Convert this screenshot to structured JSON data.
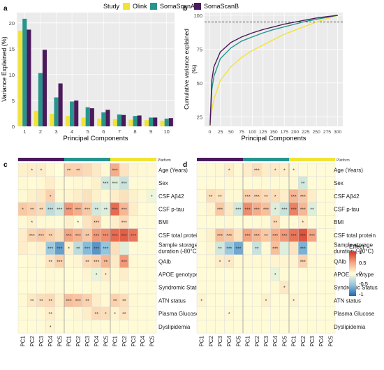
{
  "legend": {
    "title": "Study",
    "items": [
      {
        "name": "Olink",
        "color": "#F2E335"
      },
      {
        "name": "SomaScanA",
        "color": "#27958C"
      },
      {
        "name": "SomaScanB",
        "color": "#4A1A5C"
      }
    ]
  },
  "heatmap_legend": {
    "title": "Effect",
    "ticks": [
      "1",
      "0.5",
      "0",
      "-0.5",
      "-1"
    ]
  },
  "platform_label": "Platform",
  "chart_data": [
    {
      "panel": "a",
      "type": "bar",
      "xlabel": "Principal Components",
      "ylabel": "Variance Explained (%)",
      "ylim": [
        0,
        22
      ],
      "yticks": [
        0,
        5,
        10,
        15,
        20
      ],
      "categories": [
        "1",
        "2",
        "3",
        "4",
        "5",
        "6",
        "7",
        "8",
        "9",
        "10"
      ],
      "series": [
        {
          "name": "Olink",
          "values": [
            18.5,
            3.0,
            2.4,
            2.0,
            1.7,
            1.5,
            1.4,
            1.3,
            1.2,
            1.1
          ]
        },
        {
          "name": "SomaScanA",
          "values": [
            20.8,
            10.3,
            5.6,
            4.8,
            3.7,
            2.7,
            2.3,
            2.0,
            1.7,
            1.5
          ]
        },
        {
          "name": "SomaScanB",
          "values": [
            18.7,
            14.8,
            8.3,
            5.0,
            3.5,
            3.2,
            2.2,
            2.1,
            1.7,
            1.6
          ]
        }
      ],
      "grid": true
    },
    {
      "panel": "b",
      "type": "line",
      "xlabel": "Principal Components",
      "ylabel": "Cumulative variance explained (%)",
      "xlim": [
        0,
        300
      ],
      "ylim": [
        18,
        102
      ],
      "xticks": [
        0,
        25,
        50,
        75,
        100,
        125,
        150,
        175,
        200,
        225,
        250,
        275,
        300
      ],
      "yticks": [
        25,
        50,
        75,
        100
      ],
      "reference_line_y": 95,
      "x": [
        1,
        5,
        10,
        25,
        50,
        75,
        100,
        125,
        150,
        175,
        200,
        225,
        250,
        275,
        300
      ],
      "series": [
        {
          "name": "Olink",
          "values": [
            18.5,
            30,
            38,
            52,
            62,
            69,
            74,
            78,
            82,
            86,
            89,
            92,
            95,
            97.5,
            100
          ]
        },
        {
          "name": "SomaScanA",
          "values": [
            20.8,
            45,
            55,
            68,
            76,
            81,
            84,
            87,
            89.5,
            91.5,
            93.5,
            95.5,
            97,
            98.5,
            100
          ]
        },
        {
          "name": "SomaScanB",
          "values": [
            18.7,
            52,
            62,
            73,
            80,
            84,
            87,
            89.5,
            91.5,
            93.5,
            95,
            96.5,
            98,
            99,
            100
          ]
        }
      ],
      "grid": true
    },
    {
      "panel": "c",
      "type": "heatmap",
      "groups": [
        "SomaScanB",
        "SomaScanA",
        "Olink"
      ],
      "columns": [
        "PC1",
        "PC2",
        "PC3",
        "PC4",
        "PC5",
        "PC1",
        "PC2",
        "PC3",
        "PC4",
        "PC5",
        "PC1",
        "PC2",
        "PC3",
        "PC4",
        "PC5"
      ],
      "rows": [
        "Age (Years)",
        "Sex",
        "CSF Aβ42",
        "CSF p-tau",
        "BMI",
        "CSF total protein",
        "Sample storage duration (-80°C)",
        "QAlb",
        "APOE genotype",
        "Syndromic Status",
        "ATN status",
        "Plasma Glucose",
        "Dyslipidemia"
      ],
      "values": [
        [
          0.08,
          0.1,
          0.1,
          0.04,
          0,
          0.25,
          0.25,
          0.2,
          0.12,
          0.04,
          0.45,
          0.15,
          0.05,
          0.04,
          0.04
        ],
        [
          0.04,
          0.02,
          0.04,
          0.1,
          0.03,
          0.02,
          0.04,
          0.04,
          0.08,
          -0.2,
          -0.15,
          -0.25,
          0.03,
          0.02,
          0.02
        ],
        [
          0.04,
          0.08,
          0.12,
          0.25,
          0.04,
          0.06,
          0.1,
          0.16,
          0.08,
          0.04,
          0.1,
          0.16,
          0.08,
          0.04,
          -0.08
        ],
        [
          0.3,
          0.25,
          0.2,
          -0.3,
          -0.2,
          0.55,
          0.45,
          0.3,
          -0.2,
          -0.15,
          0.75,
          0.4,
          0.1,
          0.02,
          0.02
        ],
        [
          0.04,
          0.08,
          0.04,
          0.04,
          0.02,
          0.08,
          0.03,
          0.15,
          0.25,
          0.04,
          0.1,
          0.2,
          0.04,
          0.02,
          0.02
        ],
        [
          0.1,
          0.25,
          0.3,
          0.25,
          0.18,
          0.5,
          0.42,
          0.3,
          0.55,
          0.6,
          0.75,
          0.8,
          0.7,
          0.03,
          0.02
        ],
        [
          0.1,
          0.05,
          0.08,
          -0.45,
          -0.7,
          0.08,
          -0.3,
          -0.55,
          -0.75,
          -0.5,
          0.18,
          -0.15,
          0.03,
          0.02,
          0.02
        ],
        [
          0.02,
          0.04,
          0.04,
          0.15,
          0.25,
          0.04,
          0.06,
          0.2,
          0.25,
          0.4,
          0.12,
          0.55,
          0.04,
          0.02,
          0.02
        ],
        [
          0.02,
          0.02,
          0.02,
          0.04,
          0.03,
          0.02,
          0.02,
          0.06,
          -0.1,
          0.1,
          0.04,
          0.1,
          0.02,
          0.02,
          0.02
        ],
        [
          0.02,
          0.02,
          0.02,
          0.04,
          0.03,
          0.02,
          0.02,
          0.03,
          0.04,
          0.04,
          0.04,
          0.04,
          0.02,
          0.02,
          0.02
        ],
        [
          0.04,
          0.12,
          0.18,
          0.2,
          0.08,
          0.35,
          0.32,
          0.25,
          0.1,
          0.04,
          0.25,
          0.18,
          0.04,
          0.02,
          0.02
        ],
        [
          0.03,
          0.03,
          0.04,
          0.1,
          0.04,
          0.03,
          0.05,
          0.1,
          0.2,
          0.18,
          0.06,
          0.15,
          0.03,
          0.02,
          0.02
        ],
        [
          0.02,
          0.02,
          0.03,
          0.06,
          0.02,
          0.02,
          0.03,
          0.03,
          0.03,
          0.02,
          0.02,
          0.02,
          0.02,
          0.02,
          0.02
        ]
      ],
      "stars": [
        [
          "",
          "*",
          "*",
          "",
          "",
          "**",
          "**",
          "",
          "",
          "",
          "***",
          "",
          "",
          "",
          ""
        ],
        [
          "",
          "",
          "",
          "",
          "",
          "",
          "",
          "",
          "",
          "***",
          "***",
          "***",
          "",
          "",
          ""
        ],
        [
          "",
          "",
          "",
          "*",
          "",
          "",
          "",
          "",
          "",
          "",
          "",
          "",
          "",
          "",
          "*"
        ],
        [
          "*",
          "**",
          "**",
          "***",
          "***",
          "***",
          "***",
          "***",
          "**",
          "**",
          "***",
          "***",
          "",
          "",
          ""
        ],
        [
          "",
          "*",
          "",
          "",
          "",
          "",
          "*",
          "",
          "***",
          "",
          "",
          "***",
          "",
          "",
          ""
        ],
        [
          "",
          "***",
          "***",
          "**",
          "",
          "***",
          "***",
          "**",
          "***",
          "***",
          "***",
          "***",
          "***",
          "",
          ""
        ],
        [
          "",
          "",
          "",
          "***",
          "***",
          "*",
          "**",
          "***",
          "***",
          "***",
          "",
          "",
          "",
          "",
          ""
        ],
        [
          "",
          "",
          "",
          "**",
          "***",
          "",
          "",
          "**",
          "***",
          "**",
          "",
          "***",
          "",
          "",
          ""
        ],
        [
          "",
          "",
          "",
          "",
          "",
          "",
          "",
          "",
          "*",
          "*",
          "",
          "",
          "",
          "",
          ""
        ],
        [
          "",
          "",
          "",
          "",
          "",
          "",
          "",
          "",
          "",
          "",
          "",
          "",
          "",
          "",
          ""
        ],
        [
          "",
          "**",
          "**",
          "**",
          "",
          "***",
          "***",
          "**",
          "",
          "",
          "**",
          "**",
          "",
          "",
          ""
        ],
        [
          "",
          "",
          "",
          "**",
          "",
          "",
          "",
          "",
          "**",
          "*",
          "*",
          "**",
          "",
          "",
          ""
        ],
        [
          "",
          "",
          "",
          "*",
          "",
          "",
          "",
          "",
          "",
          "",
          "",
          "",
          "",
          "",
          ""
        ]
      ]
    },
    {
      "panel": "d",
      "type": "heatmap",
      "groups": [
        "SomaScanB",
        "SomaScanA",
        "Olink"
      ],
      "columns": [
        "PC1",
        "PC2",
        "PC3",
        "PC4",
        "PC5",
        "PC1",
        "PC2",
        "PC3",
        "PC4",
        "PC5",
        "PC1",
        "PC2",
        "PC3",
        "PC4",
        "PC5"
      ],
      "rows": [
        "Age (Years)",
        "Sex",
        "CSF Aβ42",
        "CSF p-tau",
        "BMI",
        "CSF total protein",
        "Sample storage duration (-80°C)",
        "QAlb",
        "APOE genotype",
        "Syndromic Status",
        "ATN status",
        "Plasma Glucose",
        "Dyslipidemia"
      ],
      "values": [
        [
          0.03,
          0.03,
          0.04,
          0.1,
          0.04,
          0.1,
          0.18,
          0.1,
          0.12,
          0.1,
          0.04,
          0.03,
          0.02,
          0.02,
          0.02
        ],
        [
          0.02,
          0.02,
          0.02,
          0.03,
          0.02,
          0.02,
          0.03,
          0.03,
          0.03,
          0.03,
          0.04,
          -0.2,
          0.02,
          0.02,
          0.02
        ],
        [
          0.03,
          0.18,
          0.15,
          0.04,
          0.04,
          0.25,
          0.25,
          0.2,
          0.18,
          0.1,
          0.4,
          0.3,
          0.1,
          0.02,
          0.02
        ],
        [
          0.03,
          0.06,
          0.3,
          0.12,
          -0.2,
          0.6,
          0.45,
          0.35,
          -0.15,
          -0.25,
          0.65,
          0.4,
          -0.15,
          0.02,
          0.02
        ],
        [
          0.02,
          0.02,
          0.03,
          0.04,
          0.02,
          0.03,
          0.03,
          0.04,
          0.2,
          0.04,
          0.03,
          0.1,
          0.02,
          0.02,
          0.02
        ],
        [
          0.04,
          0.08,
          0.35,
          0.3,
          0.15,
          0.5,
          0.4,
          0.3,
          0.45,
          0.55,
          0.7,
          0.85,
          0.5,
          0.02,
          0.02
        ],
        [
          0.02,
          0.05,
          -0.2,
          -0.45,
          -0.65,
          0.04,
          -0.25,
          0.04,
          0.35,
          -0.15,
          0.15,
          -0.6,
          0.04,
          0.02,
          0.02
        ],
        [
          0.02,
          0.04,
          0.1,
          0.12,
          0.04,
          0.04,
          0.04,
          0.04,
          0.06,
          0.06,
          0.06,
          0.25,
          0.04,
          0.02,
          0.02
        ],
        [
          0.02,
          0.02,
          0.02,
          0.02,
          0.02,
          0.02,
          0.02,
          0.02,
          -0.1,
          0.03,
          0.02,
          0.02,
          0.02,
          0.02,
          0.02
        ],
        [
          0.02,
          0.02,
          0.02,
          0.02,
          0.02,
          0.02,
          0.02,
          0.02,
          0.04,
          0.12,
          0.02,
          0.02,
          0.02,
          0.02,
          0.02
        ],
        [
          0.06,
          0.02,
          0.02,
          0.02,
          0.02,
          0.02,
          0.03,
          0.08,
          0.02,
          0.02,
          0.06,
          0.02,
          0.02,
          0.02,
          0.02
        ],
        [
          0.02,
          0.02,
          0.02,
          0.04,
          0.02,
          0.02,
          0.02,
          0.02,
          0.02,
          0.02,
          0.02,
          0.02,
          0.02,
          0.02,
          0.02
        ],
        [
          0.02,
          0.02,
          0.02,
          0.02,
          0.02,
          0.02,
          0.02,
          0.02,
          0.02,
          0.02,
          0.02,
          0.02,
          0.02,
          0.02,
          0.02
        ]
      ],
      "stars": [
        [
          "",
          "",
          "",
          "*",
          "",
          "",
          "***",
          "",
          "*",
          "*",
          "*",
          "",
          "",
          "",
          ""
        ],
        [
          "",
          "",
          "",
          "",
          "",
          "",
          "",
          "",
          "",
          "",
          "",
          "**",
          "",
          "",
          ""
        ],
        [
          "",
          "**",
          "**",
          "",
          "",
          "***",
          "***",
          "**",
          "*",
          "",
          "***",
          "***",
          "",
          "",
          ""
        ],
        [
          "",
          "",
          "***",
          "",
          "***",
          "***",
          "***",
          "***",
          "*",
          "***",
          "***",
          "***",
          "**",
          "",
          ""
        ],
        [
          "",
          "",
          "",
          "",
          "",
          "",
          "",
          "",
          "**",
          "",
          "",
          "*",
          "",
          "",
          ""
        ],
        [
          "",
          "",
          "***",
          "***",
          "",
          "***",
          "***",
          "**",
          "***",
          "***",
          "***",
          "***",
          "***",
          "",
          ""
        ],
        [
          "",
          "",
          "**",
          "***",
          "***",
          "",
          "**",
          "",
          "***",
          "",
          "",
          "***",
          "",
          "",
          ""
        ],
        [
          "",
          "",
          "*",
          "*",
          "",
          "",
          "",
          "",
          "",
          "",
          "",
          "***",
          "",
          "",
          ""
        ],
        [
          "",
          "",
          "",
          "",
          "",
          "",
          "",
          "",
          "*",
          "",
          "",
          "",
          "",
          "",
          ""
        ],
        [
          "",
          "",
          "",
          "",
          "",
          "",
          "",
          "",
          "",
          "*",
          "",
          "",
          "",
          "",
          ""
        ],
        [
          "*",
          "",
          "",
          "",
          "",
          "",
          "",
          "*",
          "",
          "",
          "*",
          "",
          "",
          "",
          ""
        ],
        [
          "",
          "",
          "",
          "*",
          "",
          "",
          "",
          "",
          "",
          "",
          "",
          "",
          "",
          "",
          ""
        ],
        [
          "",
          "",
          "",
          "",
          "",
          "",
          "",
          "",
          "",
          "",
          "",
          "",
          "",
          "",
          ""
        ]
      ]
    }
  ]
}
